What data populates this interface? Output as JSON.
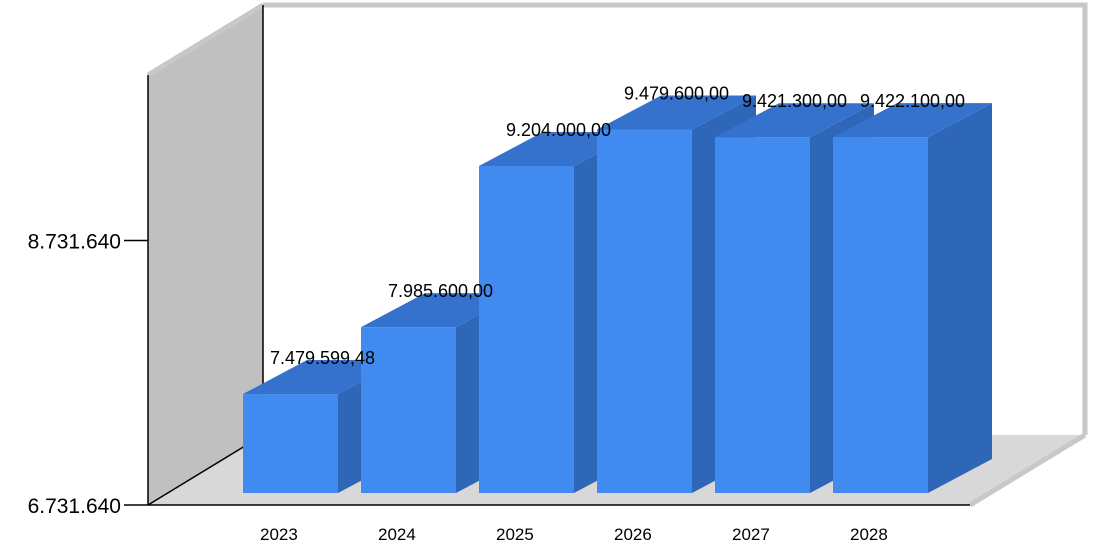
{
  "chart_data": {
    "type": "bar",
    "categories": [
      "2023",
      "2024",
      "2025",
      "2026",
      "2027",
      "2028"
    ],
    "values": [
      7479599.48,
      7985600.0,
      9204000.0,
      9479600.0,
      9421300.0,
      9422100.0
    ],
    "data_labels": [
      "7.479.599,48",
      "7.985.600,00",
      "9.204.000,00",
      "9.479.600,00",
      "9.421.300,00",
      "9.422.100,00"
    ],
    "y_ticks": [
      {
        "value": 6731640,
        "label": "6.731.640"
      },
      {
        "value": 8731640,
        "label": "8.731.640"
      }
    ],
    "ylim": [
      6731640,
      10058000
    ],
    "title": "",
    "xlabel": "",
    "ylabel": "",
    "grid": false,
    "legend": "none",
    "colors": {
      "bar_front": "#418AF0",
      "bar_top": "#3572CE",
      "bar_side": "#2E66B8",
      "back_wall": "#FFFFFF",
      "left_wall": "#C0C0C0",
      "floor": "#D8D8D8",
      "wall_edge": "#000000",
      "wall_outline": "#C8C8C8"
    }
  }
}
